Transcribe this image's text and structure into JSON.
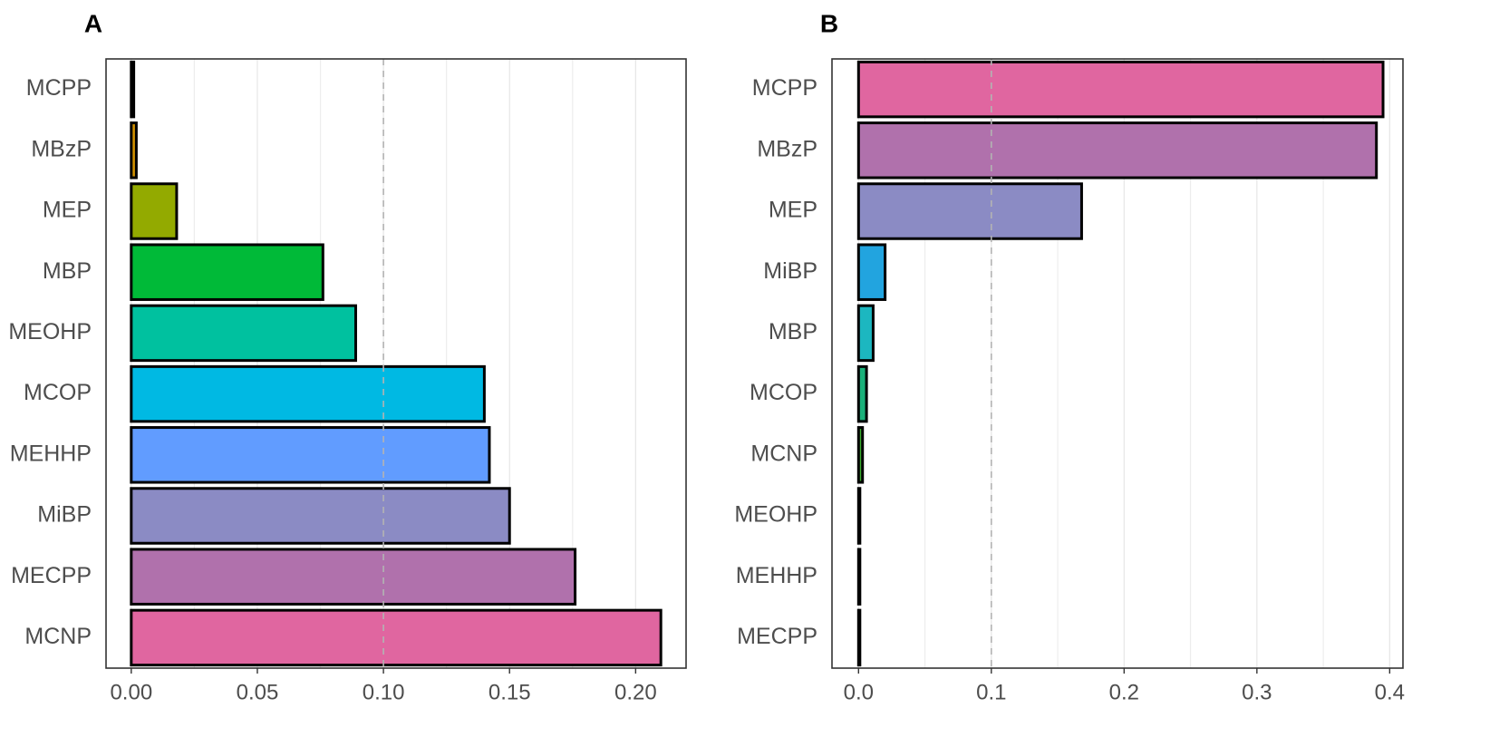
{
  "chart_data": [
    {
      "type": "bar",
      "orientation": "horizontal",
      "panel_label": "A",
      "categories": [
        "MCPP",
        "MBzP",
        "MEP",
        "MBP",
        "MEOHP",
        "MCOP",
        "MEHHP",
        "MiBP",
        "MECPP",
        "MCNP"
      ],
      "values": [
        0.001,
        0.002,
        0.018,
        0.076,
        0.089,
        0.14,
        0.142,
        0.15,
        0.176,
        0.21
      ],
      "colors": [
        "#F8766D",
        "#D39200",
        "#93AA00",
        "#00BA38",
        "#00C19F",
        "#00B9E3",
        "#619CFF",
        "#8B8BC4",
        "#B071AC",
        "#E066A0"
      ],
      "xlim": [
        -0.01,
        0.22
      ],
      "xticks": [
        0.0,
        0.05,
        0.1,
        0.15,
        0.2
      ],
      "xtick_labels": [
        "0.00",
        "0.05",
        "0.10",
        "0.15",
        "0.20"
      ],
      "reference_line": 0.1,
      "grid": "vertical",
      "xlabel": "",
      "ylabel": ""
    },
    {
      "type": "bar",
      "orientation": "horizontal",
      "panel_label": "B",
      "categories": [
        "MCPP",
        "MBzP",
        "MEP",
        "MiBP",
        "MBP",
        "MCOP",
        "MCNP",
        "MEOHP",
        "MEHHP",
        "MECPP"
      ],
      "values": [
        0.395,
        0.39,
        0.168,
        0.02,
        0.011,
        0.006,
        0.003,
        0.001,
        0.001,
        0.001
      ],
      "colors": [
        "#E066A0",
        "#B071AC",
        "#8B8BC4",
        "#22A4DF",
        "#1CB7C0",
        "#1AB17A",
        "#3BAF2F",
        "#1a1a1a",
        "#1a1a1a",
        "#1a1a1a"
      ],
      "xlim": [
        -0.02,
        0.41
      ],
      "xticks": [
        0.0,
        0.1,
        0.2,
        0.3,
        0.4
      ],
      "xtick_labels": [
        "0.0",
        "0.1",
        "0.2",
        "0.3",
        "0.4"
      ],
      "reference_line": 0.1,
      "grid": "vertical",
      "xlabel": "",
      "ylabel": ""
    }
  ]
}
